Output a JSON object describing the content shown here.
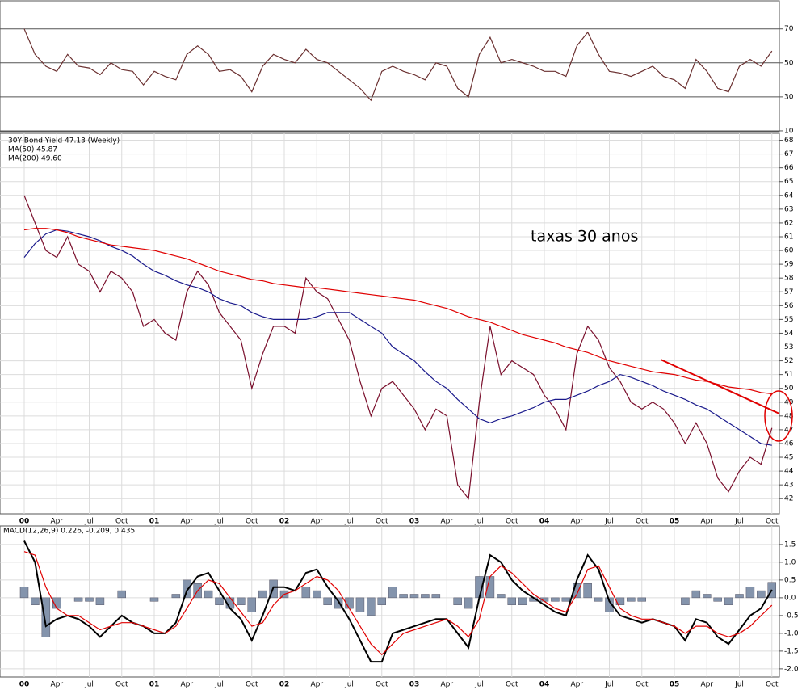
{
  "chart_data": [
    {
      "type": "line",
      "x": [
        "2000-01",
        "2000-02",
        "2000-03",
        "2000-04",
        "2000-05",
        "2000-06",
        "2000-07",
        "2000-08",
        "2000-09",
        "2000-10",
        "2000-11",
        "2000-12",
        "2001-01",
        "2001-02",
        "2001-03",
        "2001-04",
        "2001-05",
        "2001-06",
        "2001-07",
        "2001-08",
        "2001-09",
        "2001-10",
        "2001-11",
        "2001-12",
        "2002-01",
        "2002-02",
        "2002-03",
        "2002-04",
        "2002-05",
        "2002-06",
        "2002-07",
        "2002-08",
        "2002-09",
        "2002-10",
        "2002-11",
        "2002-12",
        "2003-01",
        "2003-02",
        "2003-03",
        "2003-04",
        "2003-05",
        "2003-06",
        "2003-07",
        "2003-08",
        "2003-09",
        "2003-10",
        "2003-11",
        "2003-12",
        "2004-01",
        "2004-02",
        "2004-03",
        "2004-04",
        "2004-05",
        "2004-06",
        "2004-07",
        "2004-08",
        "2004-09",
        "2004-10",
        "2004-11",
        "2004-12",
        "2005-01",
        "2005-02",
        "2005-03",
        "2005-04",
        "2005-05",
        "2005-06",
        "2005-07",
        "2005-08",
        "2005-09",
        "2005-10"
      ],
      "series": [
        {
          "color": "#6b3030",
          "values": [
            70,
            55,
            48,
            45,
            55,
            48,
            47,
            43,
            50,
            46,
            45,
            37,
            45,
            42,
            40,
            55,
            60,
            55,
            45,
            46,
            42,
            33,
            48,
            55,
            52,
            50,
            58,
            52,
            50,
            45,
            40,
            35,
            28,
            45,
            48,
            45,
            43,
            40,
            50,
            48,
            35,
            30,
            55,
            65,
            50,
            52,
            50,
            48,
            45,
            45,
            42,
            60,
            68,
            55,
            45,
            44,
            42,
            45,
            48,
            42,
            40,
            35,
            52,
            45,
            35,
            33,
            48,
            52,
            48,
            57
          ]
        }
      ],
      "ylim": [
        9.5,
        86.5
      ],
      "yticks": [
        10,
        30,
        50,
        70
      ],
      "grid": true
    },
    {
      "type": "line",
      "x": [
        "2000-01",
        "2000-02",
        "2000-03",
        "2000-04",
        "2000-05",
        "2000-06",
        "2000-07",
        "2000-08",
        "2000-09",
        "2000-10",
        "2000-11",
        "2000-12",
        "2001-01",
        "2001-02",
        "2001-03",
        "2001-04",
        "2001-05",
        "2001-06",
        "2001-07",
        "2001-08",
        "2001-09",
        "2001-10",
        "2001-11",
        "2001-12",
        "2002-01",
        "2002-02",
        "2002-03",
        "2002-04",
        "2002-05",
        "2002-06",
        "2002-07",
        "2002-08",
        "2002-09",
        "2002-10",
        "2002-11",
        "2002-12",
        "2003-01",
        "2003-02",
        "2003-03",
        "2003-04",
        "2003-05",
        "2003-06",
        "2003-07",
        "2003-08",
        "2003-09",
        "2003-10",
        "2003-11",
        "2003-12",
        "2004-01",
        "2004-02",
        "2004-03",
        "2004-04",
        "2004-05",
        "2004-06",
        "2004-07",
        "2004-08",
        "2004-09",
        "2004-10",
        "2004-11",
        "2004-12",
        "2005-01",
        "2005-02",
        "2005-03",
        "2005-04",
        "2005-05",
        "2005-06",
        "2005-07",
        "2005-08",
        "2005-09",
        "2005-10"
      ],
      "series": [
        {
          "name": "30Y Bond Yield 47.13 (Weekly)",
          "color": "#7a0f2c",
          "values": [
            64,
            62,
            60,
            59.5,
            61,
            59,
            58.5,
            57,
            58.5,
            58,
            57,
            54.5,
            55,
            54,
            53.5,
            57,
            58.5,
            57.5,
            55.5,
            54.5,
            53.5,
            50,
            52.5,
            54.5,
            54.5,
            54,
            58,
            57,
            56.5,
            55,
            53.5,
            50.5,
            48,
            50,
            50.5,
            49.5,
            48.5,
            47,
            48.5,
            48,
            43,
            42,
            49,
            54.5,
            51,
            52,
            51.5,
            51,
            49.5,
            48.5,
            47,
            52.5,
            54.5,
            53.5,
            51.5,
            50.5,
            49,
            48.5,
            49,
            48.5,
            47.5,
            46,
            47.5,
            46,
            43.5,
            42.5,
            44,
            45,
            44.5,
            47.13
          ]
        },
        {
          "name": "MA(50) 45.87",
          "color": "#1a1a8c",
          "values": [
            59.5,
            60.5,
            61.2,
            61.5,
            61.4,
            61.2,
            61,
            60.7,
            60.3,
            60,
            59.6,
            59,
            58.5,
            58.2,
            57.8,
            57.5,
            57.3,
            57,
            56.5,
            56.2,
            56,
            55.5,
            55.2,
            55,
            55,
            55,
            55,
            55.2,
            55.5,
            55.5,
            55.5,
            55,
            54.5,
            54,
            53,
            52.5,
            52,
            51.2,
            50.5,
            50,
            49.2,
            48.5,
            47.8,
            47.5,
            47.8,
            48,
            48.3,
            48.6,
            49,
            49.2,
            49.2,
            49.5,
            49.8,
            50.2,
            50.5,
            51,
            50.8,
            50.5,
            50.2,
            49.8,
            49.5,
            49.2,
            48.8,
            48.5,
            48,
            47.5,
            47,
            46.5,
            46,
            45.87
          ]
        },
        {
          "name": "MA(200) 49.60",
          "color": "#e00000",
          "values": [
            61.5,
            61.6,
            61.6,
            61.5,
            61.3,
            61,
            60.8,
            60.6,
            60.4,
            60.3,
            60.2,
            60.1,
            60,
            59.8,
            59.6,
            59.4,
            59.1,
            58.8,
            58.5,
            58.3,
            58.1,
            57.9,
            57.8,
            57.6,
            57.5,
            57.4,
            57.3,
            57.3,
            57.2,
            57.1,
            57,
            56.9,
            56.8,
            56.7,
            56.6,
            56.5,
            56.4,
            56.2,
            56,
            55.8,
            55.5,
            55.2,
            55,
            54.8,
            54.5,
            54.2,
            53.9,
            53.7,
            53.5,
            53.3,
            53,
            52.8,
            52.6,
            52.3,
            52,
            51.8,
            51.6,
            51.4,
            51.2,
            51.1,
            51,
            50.8,
            50.6,
            50.5,
            50.3,
            50.1,
            50,
            49.9,
            49.7,
            49.6
          ]
        }
      ],
      "annotations": [
        "taxas 30 anos"
      ],
      "ylim": [
        40.9,
        68.5
      ],
      "yticks": [
        42,
        43,
        44,
        45,
        46,
        47,
        48,
        49,
        50,
        51,
        52,
        53,
        54,
        55,
        56,
        57,
        58,
        59,
        60,
        61,
        62,
        63,
        64,
        65,
        66,
        67,
        68
      ],
      "xticks": [
        {
          "value": "2000-01",
          "label": "00"
        },
        {
          "value": "2000-04",
          "label": "Apr"
        },
        {
          "value": "2000-07",
          "label": "Jul"
        },
        {
          "value": "2000-10",
          "label": "Oct"
        },
        {
          "value": "2001-01",
          "label": "01"
        },
        {
          "value": "2001-04",
          "label": "Apr"
        },
        {
          "value": "2001-07",
          "label": "Jul"
        },
        {
          "value": "2001-10",
          "label": "Oct"
        },
        {
          "value": "2002-01",
          "label": "02"
        },
        {
          "value": "2002-04",
          "label": "Apr"
        },
        {
          "value": "2002-07",
          "label": "Jul"
        },
        {
          "value": "2002-10",
          "label": "Oct"
        },
        {
          "value": "2003-01",
          "label": "03"
        },
        {
          "value": "2003-04",
          "label": "Apr"
        },
        {
          "value": "2003-07",
          "label": "Jul"
        },
        {
          "value": "2003-10",
          "label": "Oct"
        },
        {
          "value": "2004-01",
          "label": "04"
        },
        {
          "value": "2004-04",
          "label": "Apr"
        },
        {
          "value": "2004-07",
          "label": "Jul"
        },
        {
          "value": "2004-10",
          "label": "Oct"
        },
        {
          "value": "2005-01",
          "label": "05"
        },
        {
          "value": "2005-04",
          "label": "Apr"
        },
        {
          "value": "2005-07",
          "label": "Jul"
        },
        {
          "value": "2005-10",
          "label": "Oct"
        }
      ],
      "grid": true
    },
    {
      "type": "line",
      "title": "MACD(12,26,9) 0.226, -0.209, 0.435",
      "x": [
        "2000-01",
        "2000-02",
        "2000-03",
        "2000-04",
        "2000-05",
        "2000-06",
        "2000-07",
        "2000-08",
        "2000-09",
        "2000-10",
        "2000-11",
        "2000-12",
        "2001-01",
        "2001-02",
        "2001-03",
        "2001-04",
        "2001-05",
        "2001-06",
        "2001-07",
        "2001-08",
        "2001-09",
        "2001-10",
        "2001-11",
        "2001-12",
        "2002-01",
        "2002-02",
        "2002-03",
        "2002-04",
        "2002-05",
        "2002-06",
        "2002-07",
        "2002-08",
        "2002-09",
        "2002-10",
        "2002-11",
        "2002-12",
        "2003-01",
        "2003-02",
        "2003-03",
        "2003-04",
        "2003-05",
        "2003-06",
        "2003-07",
        "2003-08",
        "2003-09",
        "2003-10",
        "2003-11",
        "2003-12",
        "2004-01",
        "2004-02",
        "2004-03",
        "2004-04",
        "2004-05",
        "2004-06",
        "2004-07",
        "2004-08",
        "2004-09",
        "2004-10",
        "2004-11",
        "2004-12",
        "2005-01",
        "2005-02",
        "2005-03",
        "2005-04",
        "2005-05",
        "2005-06",
        "2005-07",
        "2005-08",
        "2005-09",
        "2005-10"
      ],
      "series": [
        {
          "type": "bar",
          "color": "#8494ac",
          "values": [
            0.3,
            -0.2,
            -1.1,
            -0.3,
            0.0,
            -0.1,
            -0.1,
            -0.2,
            0.0,
            0.2,
            0.0,
            0.0,
            -0.1,
            0.0,
            0.1,
            0.5,
            0.4,
            0.2,
            -0.2,
            -0.3,
            -0.2,
            -0.4,
            0.2,
            0.5,
            0.2,
            0.0,
            0.3,
            0.2,
            -0.2,
            -0.3,
            -0.3,
            -0.4,
            -0.5,
            -0.2,
            0.3,
            0.1,
            0.1,
            0.1,
            0.1,
            0.0,
            -0.2,
            -0.3,
            0.6,
            0.6,
            0.1,
            -0.2,
            -0.2,
            -0.1,
            -0.1,
            -0.1,
            -0.1,
            0.4,
            0.4,
            -0.1,
            -0.4,
            -0.2,
            -0.1,
            -0.1,
            0.0,
            0.0,
            0.0,
            -0.2,
            0.2,
            0.1,
            -0.1,
            -0.2,
            0.1,
            0.3,
            0.2,
            0.435
          ]
        },
        {
          "type": "line",
          "color": "#000000",
          "values": [
            1.6,
            1.0,
            -0.8,
            -0.6,
            -0.5,
            -0.6,
            -0.8,
            -1.1,
            -0.8,
            -0.5,
            -0.7,
            -0.8,
            -1.0,
            -1.0,
            -0.7,
            0.2,
            0.6,
            0.7,
            0.2,
            -0.3,
            -0.6,
            -1.2,
            -0.5,
            0.3,
            0.3,
            0.2,
            0.7,
            0.8,
            0.3,
            -0.1,
            -0.6,
            -1.2,
            -1.8,
            -1.8,
            -1.0,
            -0.9,
            -0.8,
            -0.7,
            -0.6,
            -0.6,
            -1.0,
            -1.4,
            0.0,
            1.2,
            1.0,
            0.5,
            0.2,
            0.0,
            -0.2,
            -0.4,
            -0.5,
            0.5,
            1.2,
            0.8,
            -0.1,
            -0.5,
            -0.6,
            -0.7,
            -0.6,
            -0.7,
            -0.8,
            -1.2,
            -0.6,
            -0.7,
            -1.1,
            -1.3,
            -0.9,
            -0.5,
            -0.3,
            0.226
          ]
        },
        {
          "type": "line",
          "color": "#e00000",
          "values": [
            1.3,
            1.2,
            0.3,
            -0.3,
            -0.5,
            -0.5,
            -0.7,
            -0.9,
            -0.8,
            -0.7,
            -0.7,
            -0.8,
            -0.9,
            -1.0,
            -0.8,
            -0.3,
            0.2,
            0.5,
            0.4,
            0.0,
            -0.4,
            -0.8,
            -0.7,
            -0.2,
            0.1,
            0.2,
            0.4,
            0.6,
            0.5,
            0.2,
            -0.3,
            -0.8,
            -1.3,
            -1.6,
            -1.3,
            -1.0,
            -0.9,
            -0.8,
            -0.7,
            -0.6,
            -0.8,
            -1.1,
            -0.6,
            0.6,
            0.9,
            0.7,
            0.4,
            0.1,
            -0.1,
            -0.3,
            -0.4,
            0.1,
            0.8,
            0.9,
            0.3,
            -0.3,
            -0.5,
            -0.6,
            -0.6,
            -0.7,
            -0.8,
            -1.0,
            -0.8,
            -0.8,
            -1.0,
            -1.1,
            -1.0,
            -0.8,
            -0.5,
            -0.209
          ]
        }
      ],
      "ylim": [
        -2.23,
        2.02
      ],
      "yticks": [
        {
          "value": -2.0,
          "label": "-2.0"
        },
        -1.5,
        {
          "value": -1.0,
          "label": "-1.0"
        },
        -0.5,
        {
          "value": 0.0,
          "label": "0.0"
        },
        0.5,
        {
          "value": 1.0,
          "label": "1.0"
        },
        1.5
      ],
      "xticks": [
        {
          "value": "2000-01",
          "label": "00"
        },
        {
          "value": "2000-04",
          "label": "Apr"
        },
        {
          "value": "2000-07",
          "label": "Jul"
        },
        {
          "value": "2000-10",
          "label": "Oct"
        },
        {
          "value": "2001-01",
          "label": "01"
        },
        {
          "value": "2001-04",
          "label": "Apr"
        },
        {
          "value": "2001-07",
          "label": "Jul"
        },
        {
          "value": "2001-10",
          "label": "Oct"
        },
        {
          "value": "2002-01",
          "label": "02"
        },
        {
          "value": "2002-04",
          "label": "Apr"
        },
        {
          "value": "2002-07",
          "label": "Jul"
        },
        {
          "value": "2002-10",
          "label": "Oct"
        },
        {
          "value": "2003-01",
          "label": "03"
        },
        {
          "value": "2003-04",
          "label": "Apr"
        },
        {
          "value": "2003-07",
          "label": "Jul"
        },
        {
          "value": "2003-10",
          "label": "Oct"
        },
        {
          "value": "2004-01",
          "label": "04"
        },
        {
          "value": "2004-04",
          "label": "Apr"
        },
        {
          "value": "2004-07",
          "label": "Jul"
        },
        {
          "value": "2004-10",
          "label": "Oct"
        },
        {
          "value": "2005-01",
          "label": "05"
        },
        {
          "value": "2005-04",
          "label": "Apr"
        },
        {
          "value": "2005-07",
          "label": "Jul"
        },
        {
          "value": "2005-10",
          "label": "Oct"
        }
      ],
      "grid": true
    }
  ]
}
